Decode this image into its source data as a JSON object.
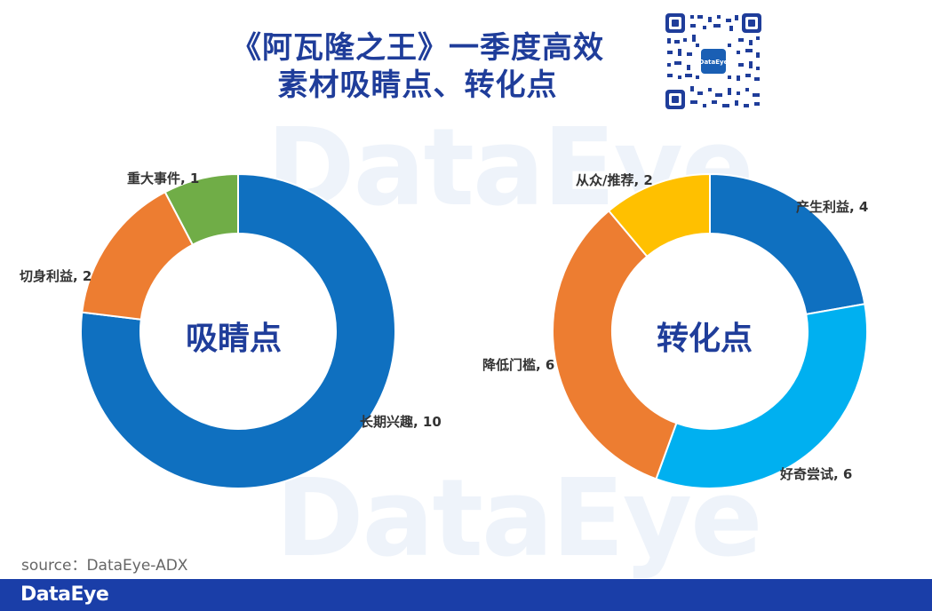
{
  "title": {
    "line1": "《阿瓦隆之王》一季度高效",
    "line2": "素材吸睛点、转化点"
  },
  "watermark": "DataEye",
  "qr_badge": "DataEye",
  "source": "source：DataEye-ADX",
  "footer_logo": "DataEye",
  "chart_data": [
    {
      "type": "pie",
      "subtype": "donut",
      "center_label": "吸睛点",
      "slices": [
        {
          "label": "长期兴趣",
          "value": 10,
          "display": "长期兴趣, 10",
          "color": "#0f70c0"
        },
        {
          "label": "切身利益",
          "value": 2,
          "display": "切身利益, 2",
          "color": "#ed7d31"
        },
        {
          "label": "重大事件",
          "value": 1,
          "display": "重大事件, 1",
          "color": "#70ad47"
        }
      ]
    },
    {
      "type": "pie",
      "subtype": "donut",
      "center_label": "转化点",
      "slices": [
        {
          "label": "产生利益",
          "value": 4,
          "display": "产生利益, 4",
          "color": "#0f70c0"
        },
        {
          "label": "好奇尝试",
          "value": 6,
          "display": "好奇尝试, 6",
          "color": "#00b0f0"
        },
        {
          "label": "降低门槛",
          "value": 6,
          "display": "降低门槛, 6",
          "color": "#ed7d31"
        },
        {
          "label": "从众/推荐",
          "value": 2,
          "display": "从众/推荐, 2",
          "color": "#ffc000"
        }
      ]
    }
  ]
}
